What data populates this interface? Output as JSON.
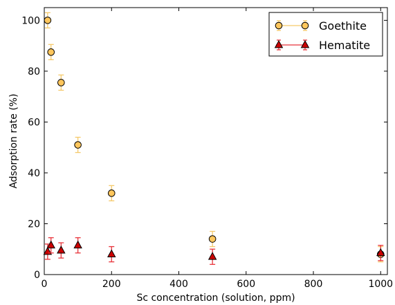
{
  "chart_data": {
    "type": "scatter",
    "title": "",
    "xlabel": "Sc concentration (solution, ppm)",
    "ylabel": "Adsorption rate (%)",
    "xlim": [
      0,
      1020
    ],
    "ylim": [
      0,
      105
    ],
    "xticks": [
      0,
      200,
      400,
      600,
      800,
      1000
    ],
    "yticks": [
      0,
      20,
      40,
      60,
      80,
      100
    ],
    "grid": false,
    "legend_position": "top-right",
    "series": [
      {
        "name": "Goethite",
        "marker": "circle",
        "color": "#ffc65c",
        "error_color": "#f5c96a",
        "x": [
          10,
          20,
          50,
          100,
          200,
          500,
          1000
        ],
        "y": [
          100,
          87.5,
          75.5,
          51,
          32,
          14,
          8
        ],
        "yerr": [
          3,
          3,
          3,
          3,
          3,
          3,
          3
        ]
      },
      {
        "name": "Hematite",
        "marker": "triangle",
        "color": "#cc0000",
        "error_color": "#e8333a",
        "x": [
          10,
          20,
          50,
          100,
          200,
          500,
          1000
        ],
        "y": [
          9,
          11.5,
          9.5,
          11.5,
          8,
          7,
          8.5
        ],
        "yerr": [
          3,
          3,
          3,
          3,
          3,
          3,
          3
        ]
      }
    ]
  }
}
